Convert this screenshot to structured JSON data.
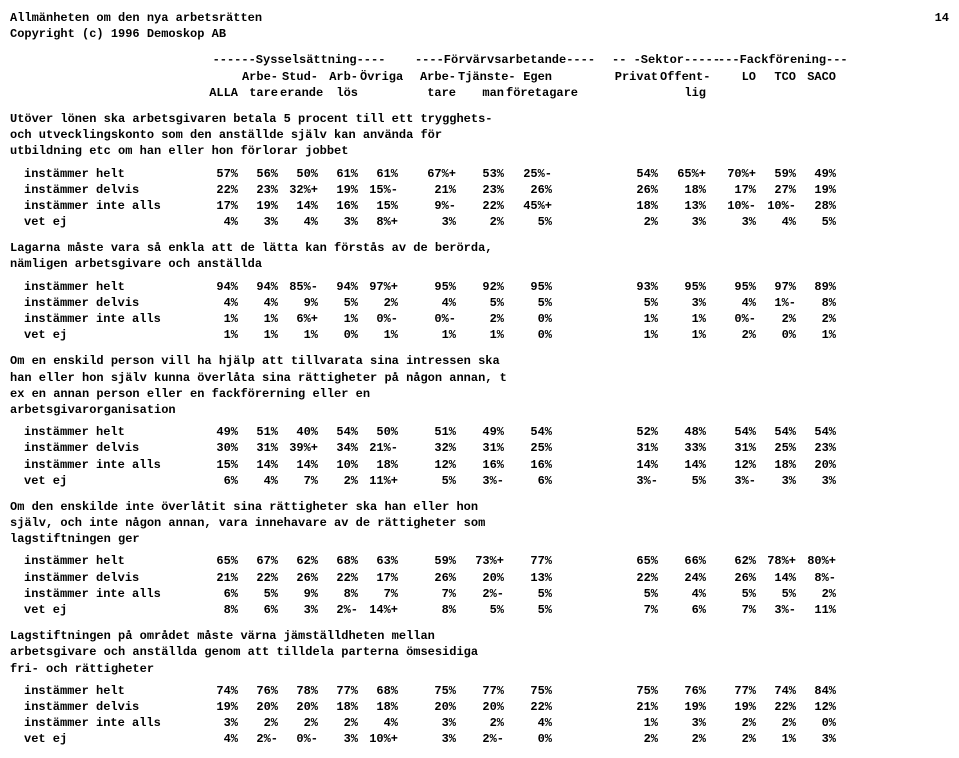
{
  "page_number": "14",
  "title": "Allmänheten om den nya arbetsrätten",
  "copyright": "Copyright (c)  1996  Demoskop AB",
  "group_headers": {
    "g1": "------Sysselsättning----",
    "g2": "----Förvärvsarbetande----",
    "g3": "-- -Sektor-----",
    "g4": "---Fackförening---"
  },
  "col_headers_line1": [
    "",
    "",
    "Arbe-",
    "Stud-",
    "Arb-",
    "Övriga",
    "",
    "Arbe-",
    "Tjänste-",
    "Egen",
    "",
    "",
    "Privat",
    "Offent-",
    "",
    "LO",
    "TCO",
    "SACO"
  ],
  "col_headers_line2": [
    "",
    "ALLA",
    "tare",
    "erande",
    "lös",
    "",
    "",
    "tare",
    "man",
    "företagare",
    "",
    "",
    "",
    "lig",
    "",
    "",
    "",
    ""
  ],
  "questions": [
    {
      "text": [
        "Utöver lönen ska arbetsgivaren betala 5 procent till ett trygghets-",
        "och utvecklingskonto som den anställde själv kan använda för",
        "utbildning etc om han eller hon förlorar jobbet"
      ],
      "rows": [
        {
          "label": "instämmer helt",
          "cells": [
            "57%",
            "56%",
            "50%",
            "61%",
            "61%",
            "",
            "67%+",
            "53%",
            "25%-",
            "",
            "",
            "54%",
            "65%+",
            "",
            "70%+",
            "59%",
            "49%"
          ]
        },
        {
          "label": "instämmer delvis",
          "cells": [
            "22%",
            "23%",
            "32%+",
            "19%",
            "15%-",
            "",
            "21%",
            "23%",
            "26%",
            "",
            "",
            "26%",
            "18%",
            "",
            "17%",
            "27%",
            "19%"
          ]
        },
        {
          "label": "instämmer inte alls",
          "cells": [
            "17%",
            "19%",
            "14%",
            "16%",
            "15%",
            "",
            "9%-",
            "22%",
            "45%+",
            "",
            "",
            "18%",
            "13%",
            "",
            "10%-",
            "10%-",
            "28%"
          ]
        },
        {
          "label": "vet ej",
          "cells": [
            "4%",
            "3%",
            "4%",
            "3%",
            "8%+",
            "",
            "3%",
            "2%",
            "5%",
            "",
            "",
            "2%",
            "3%",
            "",
            "3%",
            "4%",
            "5%"
          ]
        }
      ]
    },
    {
      "text": [
        "Lagarna måste vara så enkla att de lätta kan förstås av de berörda,",
        "nämligen arbetsgivare och anställda"
      ],
      "rows": [
        {
          "label": "instämmer helt",
          "cells": [
            "94%",
            "94%",
            "85%-",
            "94%",
            "97%+",
            "",
            "95%",
            "92%",
            "95%",
            "",
            "",
            "93%",
            "95%",
            "",
            "95%",
            "97%",
            "89%"
          ]
        },
        {
          "label": "instämmer delvis",
          "cells": [
            "4%",
            "4%",
            "9%",
            "5%",
            "2%",
            "",
            "4%",
            "5%",
            "5%",
            "",
            "",
            "5%",
            "3%",
            "",
            "4%",
            "1%-",
            "8%"
          ]
        },
        {
          "label": "instämmer inte alls",
          "cells": [
            "1%",
            "1%",
            "6%+",
            "1%",
            "0%-",
            "",
            "0%-",
            "2%",
            "0%",
            "",
            "",
            "1%",
            "1%",
            "",
            "0%-",
            "2%",
            "2%"
          ]
        },
        {
          "label": "vet ej",
          "cells": [
            "1%",
            "1%",
            "1%",
            "0%",
            "1%",
            "",
            "1%",
            "1%",
            "0%",
            "",
            "",
            "1%",
            "1%",
            "",
            "2%",
            "0%",
            "1%"
          ]
        }
      ]
    },
    {
      "text": [
        "Om en enskild person vill ha hjälp att tillvarata sina intressen ska",
        "han eller hon själv kunna överlåta sina rättigheter på någon annan, t",
        "ex en annan person eller en fackförerning eller en",
        "arbetsgivarorganisation"
      ],
      "rows": [
        {
          "label": "instämmer helt",
          "cells": [
            "49%",
            "51%",
            "40%",
            "54%",
            "50%",
            "",
            "51%",
            "49%",
            "54%",
            "",
            "",
            "52%",
            "48%",
            "",
            "54%",
            "54%",
            "54%"
          ]
        },
        {
          "label": "instämmer delvis",
          "cells": [
            "30%",
            "31%",
            "39%+",
            "34%",
            "21%-",
            "",
            "32%",
            "31%",
            "25%",
            "",
            "",
            "31%",
            "33%",
            "",
            "31%",
            "25%",
            "23%"
          ]
        },
        {
          "label": "instämmer inte alls",
          "cells": [
            "15%",
            "14%",
            "14%",
            "10%",
            "18%",
            "",
            "12%",
            "16%",
            "16%",
            "",
            "",
            "14%",
            "14%",
            "",
            "12%",
            "18%",
            "20%"
          ]
        },
        {
          "label": "vet ej",
          "cells": [
            "6%",
            "4%",
            "7%",
            "2%",
            "11%+",
            "",
            "5%",
            "3%-",
            "6%",
            "",
            "",
            "3%-",
            "5%",
            "",
            "3%-",
            "3%",
            "3%"
          ]
        }
      ]
    },
    {
      "text": [
        "Om den enskilde inte överlåtit sina rättigheter ska han eller hon",
        "själv, och inte någon annan, vara innehavare av de rättigheter som",
        "lagstiftningen ger"
      ],
      "rows": [
        {
          "label": "instämmer helt",
          "cells": [
            "65%",
            "67%",
            "62%",
            "68%",
            "63%",
            "",
            "59%",
            "73%+",
            "77%",
            "",
            "",
            "65%",
            "66%",
            "",
            "62%",
            "78%+",
            "80%+"
          ]
        },
        {
          "label": "instämmer delvis",
          "cells": [
            "21%",
            "22%",
            "26%",
            "22%",
            "17%",
            "",
            "26%",
            "20%",
            "13%",
            "",
            "",
            "22%",
            "24%",
            "",
            "26%",
            "14%",
            "8%-"
          ]
        },
        {
          "label": "instämmer inte alls",
          "cells": [
            "6%",
            "5%",
            "9%",
            "8%",
            "7%",
            "",
            "7%",
            "2%-",
            "5%",
            "",
            "",
            "5%",
            "4%",
            "",
            "5%",
            "5%",
            "2%"
          ]
        },
        {
          "label": "vet ej",
          "cells": [
            "8%",
            "6%",
            "3%",
            "2%-",
            "14%+",
            "",
            "8%",
            "5%",
            "5%",
            "",
            "",
            "7%",
            "6%",
            "",
            "7%",
            "3%-",
            "11%"
          ]
        }
      ]
    },
    {
      "text": [
        "Lagstiftningen på området måste värna jämställdheten mellan",
        "arbetsgivare och anställda genom att tilldela parterna ömsesidiga",
        "fri- och rättigheter"
      ],
      "rows": [
        {
          "label": "instämmer helt",
          "cells": [
            "74%",
            "76%",
            "78%",
            "77%",
            "68%",
            "",
            "75%",
            "77%",
            "75%",
            "",
            "",
            "75%",
            "76%",
            "",
            "77%",
            "74%",
            "84%"
          ]
        },
        {
          "label": "instämmer delvis",
          "cells": [
            "19%",
            "20%",
            "20%",
            "18%",
            "18%",
            "",
            "20%",
            "20%",
            "22%",
            "",
            "",
            "21%",
            "19%",
            "",
            "19%",
            "22%",
            "12%"
          ]
        },
        {
          "label": "instämmer inte alls",
          "cells": [
            "3%",
            "2%",
            "2%",
            "2%",
            "4%",
            "",
            "3%",
            "2%",
            "4%",
            "",
            "",
            "1%",
            "3%",
            "",
            "2%",
            "2%",
            "0%"
          ]
        },
        {
          "label": "vet ej",
          "cells": [
            "4%",
            "2%-",
            "0%-",
            "3%",
            "10%+",
            "",
            "3%",
            "2%-",
            "0%",
            "",
            "",
            "2%",
            "2%",
            "",
            "2%",
            "1%",
            "3%"
          ]
        }
      ]
    }
  ]
}
